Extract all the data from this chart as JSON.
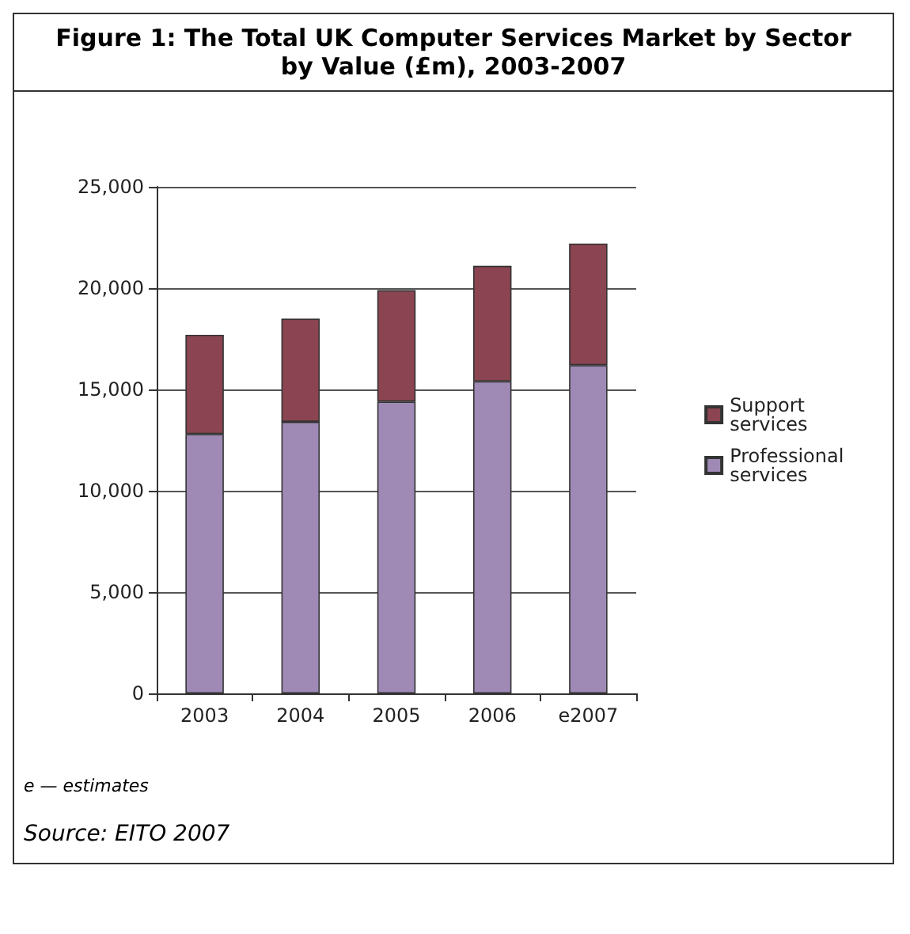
{
  "chart_data": {
    "type": "bar",
    "title": "Figure 1: The Total UK Computer Services Market by Sector by Value (£m), 2003-2007",
    "categories": [
      "2003",
      "2004",
      "2005",
      "2006",
      "e2007"
    ],
    "series": [
      {
        "name": "Professional services",
        "color": "#9e8ab5",
        "values": [
          12800,
          13400,
          14400,
          15400,
          16200
        ]
      },
      {
        "name": "Support services",
        "color": "#8b4451",
        "values": [
          4900,
          5100,
          5500,
          5700,
          6000
        ]
      }
    ],
    "stacked": true,
    "ylim": [
      0,
      25000
    ],
    "yticks": [
      0,
      {
        "value": 5000,
        "label": "5,000"
      },
      {
        "value": 10000,
        "label": "10,000"
      },
      {
        "value": 15000,
        "label": "15,000"
      },
      {
        "value": 20000,
        "label": "20,000"
      },
      {
        "value": 25000,
        "label": "25,000"
      }
    ],
    "grid": "y",
    "legend": "right",
    "annotations": [
      "e — estimates",
      "Source: EITO 2007"
    ]
  }
}
